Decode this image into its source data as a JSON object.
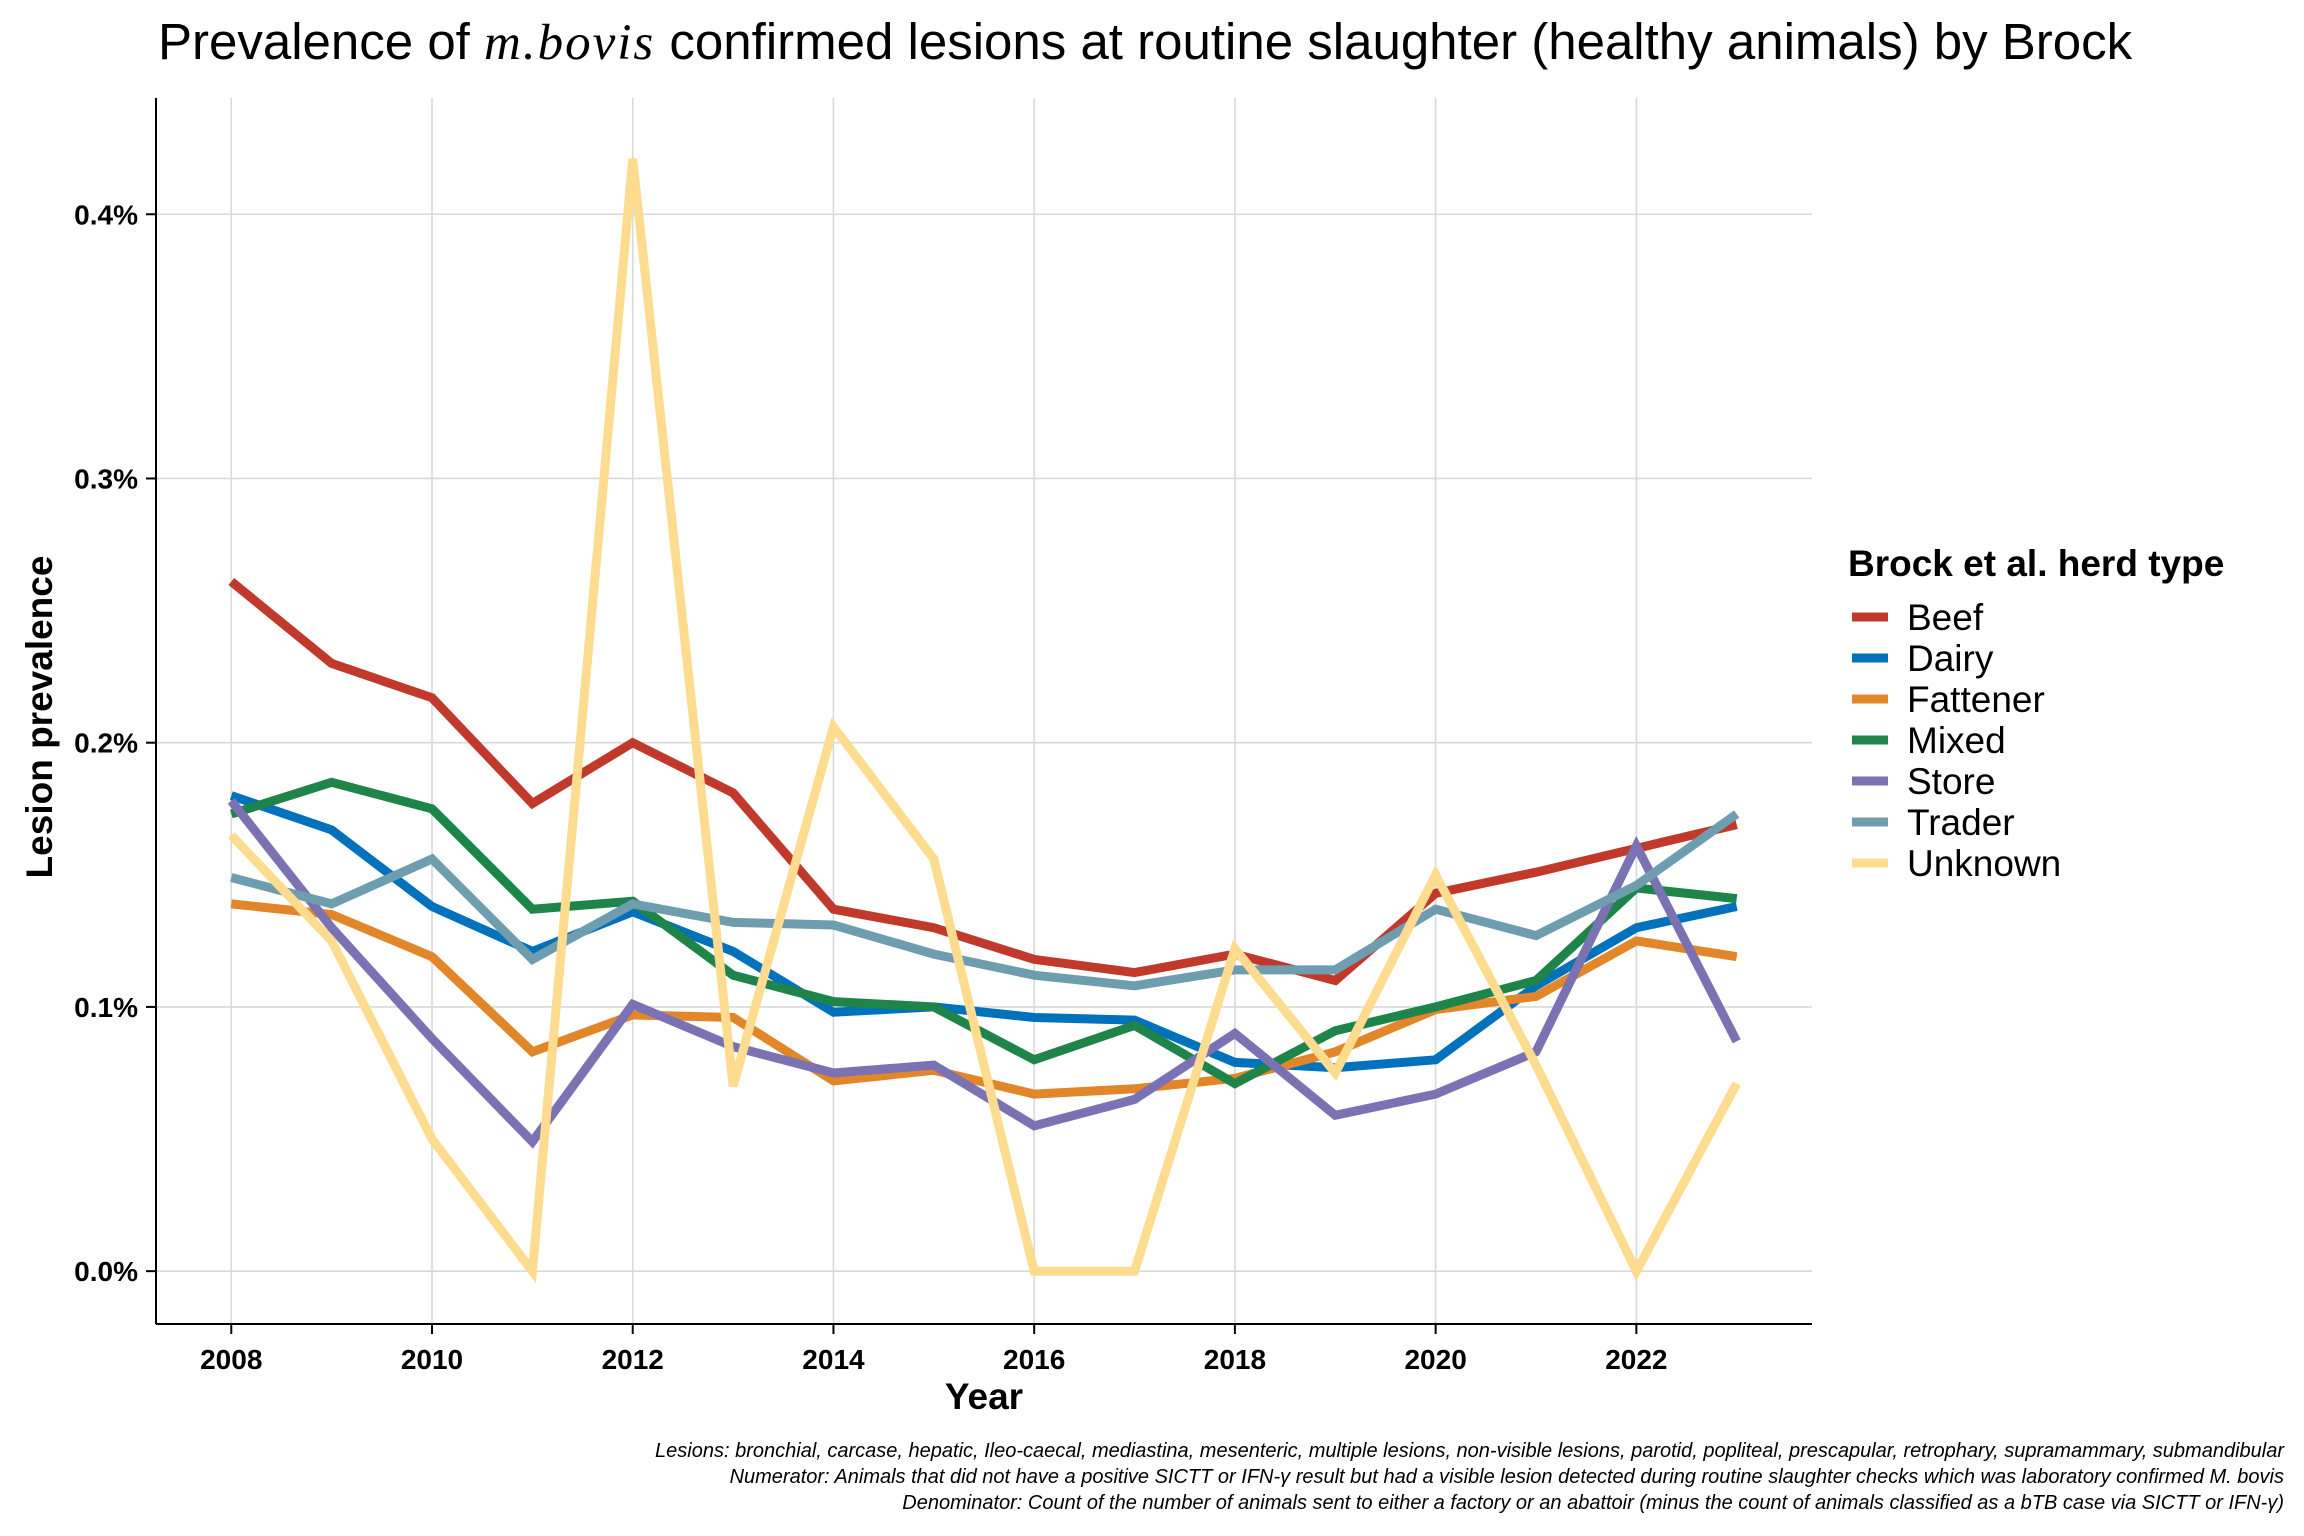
{
  "title": {
    "prefix": "Prevalence of ",
    "italic": "m.bovis",
    "suffix": " confirmed lesions at routine slaughter (healthy animals) by Brock"
  },
  "legend": {
    "title": "Brock et al. herd type"
  },
  "footnotes": {
    "lesions": "Lesions: bronchial, carcase, hepatic, Ileo-caecal, mediastina, mesenteric, multiple lesions, non-visible lesions, parotid, popliteal, prescapular, retrophary, supramammary, submandibular",
    "numerator": "Numerator: Animals that did not have a positive SICTT or IFN-γ result but had a visible lesion detected during routine slaughter checks which was laboratory confirmed M. bovis",
    "denominator": "Denominator: Count of the number of animals sent to either a factory or an abattoir (minus the count of animals classified as a bTB case via SICTT or IFN-γ)"
  },
  "chart_data": {
    "type": "line",
    "xlabel": "Year",
    "ylabel": "Lesion prevalence",
    "xlim": [
      2007.25,
      2023.75
    ],
    "ylim": [
      -0.0002,
      0.00444
    ],
    "x_ticks": [
      2008,
      2010,
      2012,
      2014,
      2016,
      2018,
      2020,
      2022
    ],
    "x_tick_labels": [
      "2008",
      "2010",
      "2012",
      "2014",
      "2016",
      "2018",
      "2020",
      "2022"
    ],
    "y_ticks": [
      0,
      0.001,
      0.002,
      0.003,
      0.004
    ],
    "y_tick_labels": [
      "0.0%",
      "0.1%",
      "0.2%",
      "0.3%",
      "0.4%"
    ],
    "grid": true,
    "legend_position": "right",
    "x": [
      2008,
      2009,
      2010,
      2011,
      2012,
      2013,
      2014,
      2015,
      2016,
      2017,
      2018,
      2019,
      2020,
      2021,
      2022,
      2023
    ],
    "series": [
      {
        "name": "Beef",
        "color": "#C0392B",
        "values": [
          0.00261,
          0.0023,
          0.00217,
          0.00177,
          0.002,
          0.00181,
          0.00137,
          0.0013,
          0.00118,
          0.00113,
          0.0012,
          0.0011,
          0.00143,
          0.00151,
          0.0016,
          0.00169
        ]
      },
      {
        "name": "Dairy",
        "color": "#0072BB",
        "values": [
          0.0018,
          0.00167,
          0.00138,
          0.00121,
          0.00136,
          0.00121,
          0.00098,
          0.001,
          0.00096,
          0.00095,
          0.00079,
          0.00077,
          0.0008,
          0.00108,
          0.0013,
          0.00138
        ]
      },
      {
        "name": "Fattener",
        "color": "#E2862A",
        "values": [
          0.00139,
          0.00135,
          0.00119,
          0.00083,
          0.00097,
          0.00096,
          0.00072,
          0.00076,
          0.00067,
          0.00069,
          0.00073,
          0.00083,
          0.00099,
          0.00104,
          0.00125,
          0.00119
        ]
      },
      {
        "name": "Mixed",
        "color": "#1E8449",
        "values": [
          0.00173,
          0.00185,
          0.00175,
          0.00137,
          0.0014,
          0.00112,
          0.00102,
          0.001,
          0.0008,
          0.00093,
          0.00071,
          0.00091,
          0.001,
          0.0011,
          0.00145,
          0.00141
        ]
      },
      {
        "name": "Store",
        "color": "#7B72B4",
        "values": [
          0.00178,
          0.0013,
          0.00088,
          0.00049,
          0.00101,
          0.00085,
          0.00075,
          0.00078,
          0.00055,
          0.00065,
          0.0009,
          0.00059,
          0.00067,
          0.00083,
          0.00161,
          0.00087
        ]
      },
      {
        "name": "Trader",
        "color": "#6E9DB0",
        "values": [
          0.00149,
          0.00139,
          0.00156,
          0.00118,
          0.00139,
          0.00132,
          0.00131,
          0.0012,
          0.00112,
          0.00108,
          0.00114,
          0.00114,
          0.00137,
          0.00127,
          0.00146,
          0.00173
        ]
      },
      {
        "name": "Unknown",
        "color": "#FDDC8F",
        "values": [
          0.00165,
          0.00125,
          0.0005,
          0.0,
          0.00421,
          0.0007,
          0.00206,
          0.00156,
          0.0,
          0.0,
          0.00122,
          0.00075,
          0.0015,
          0.00078,
          0.0,
          0.00071
        ]
      }
    ]
  }
}
